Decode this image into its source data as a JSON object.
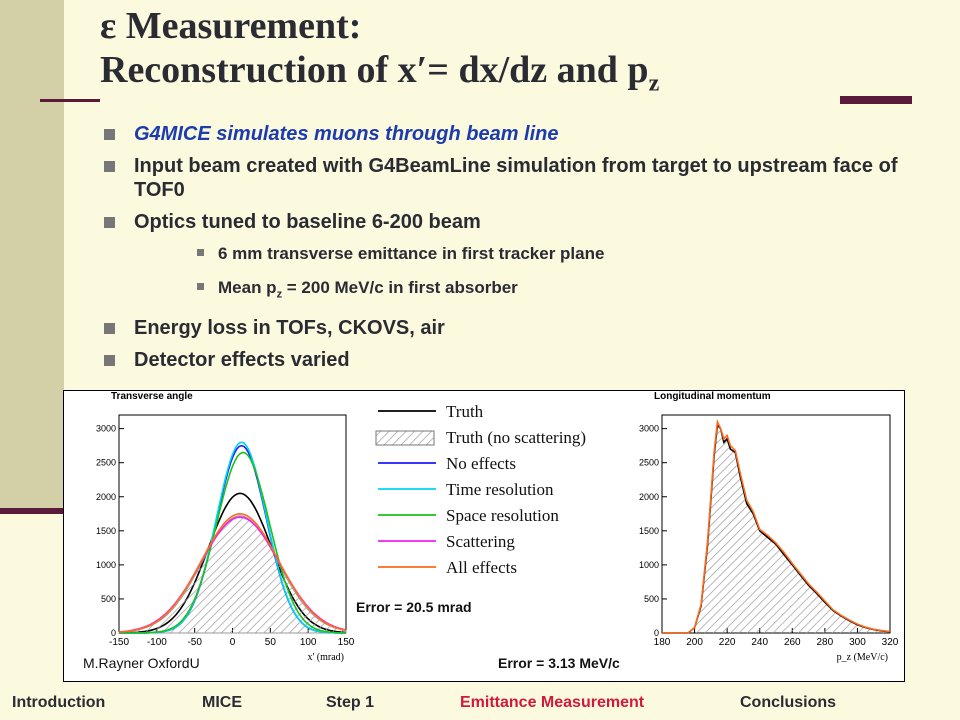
{
  "slide": {
    "title_line1": "ε Measurement:",
    "title_line2_pre": "Reconstruction of x′= dx/dz and p",
    "title_line2_sub": "z",
    "bullets": [
      "G4MICE simulates muons through beam line",
      "Input beam created with G4BeamLine simulation from target to upstream face of TOF0",
      "Optics tuned to baseline 6-200 beam"
    ],
    "sub_bullet1": "6 mm transverse emittance in first tracker plane",
    "sub_bullet2_pre": "Mean p",
    "sub_bullet2_sub": "z",
    "sub_bullet2_post": " = 200 MeV/c in first absorber",
    "bullet4": "Energy loss in TOFs, CKOVS, air",
    "bullet5": "Detector effects varied"
  },
  "figure": {
    "credit": "M.Rayner OxfordU",
    "error_left": "Error = 20.5 mrad",
    "error_right": "Error = 3.13 MeV/c",
    "legend": [
      {
        "label": "Truth",
        "color": "#000000"
      },
      {
        "label": "Truth (no scattering)",
        "color": "#999999"
      },
      {
        "label": "No effects",
        "color": "#1a1aff"
      },
      {
        "label": "Time resolution",
        "color": "#00d6f0"
      },
      {
        "label": "Space resolution",
        "color": "#1ec01e"
      },
      {
        "label": "Scattering",
        "color": "#f020f0"
      },
      {
        "label": "All effects",
        "color": "#ff6a1a"
      }
    ]
  },
  "chart_data": [
    {
      "type": "line",
      "title": "Transverse angle",
      "xlabel": "x' (mrad)",
      "ylabel": "",
      "xlim": [
        -150,
        150
      ],
      "ylim": [
        0,
        3200
      ],
      "x_ticks": [
        -150,
        -100,
        -50,
        0,
        50,
        100,
        150
      ],
      "y_ticks": [
        0,
        500,
        1000,
        1500,
        2000,
        2500,
        3000
      ],
      "series": [
        {
          "name": "Truth",
          "color": "#000000",
          "peak_x": 10,
          "peak_y": 2050,
          "sigma": 42
        },
        {
          "name": "Truth (no scattering)",
          "color": "#999999",
          "peak_x": 10,
          "peak_y": 1720,
          "sigma": 50
        },
        {
          "name": "No effects",
          "color": "#1a1aff",
          "peak_x": 12,
          "peak_y": 2750,
          "sigma": 33
        },
        {
          "name": "Time resolution",
          "color": "#00d6f0",
          "peak_x": 12,
          "peak_y": 2800,
          "sigma": 33
        },
        {
          "name": "Space resolution",
          "color": "#1ec01e",
          "peak_x": 14,
          "peak_y": 2650,
          "sigma": 35
        },
        {
          "name": "Scattering",
          "color": "#f020f0",
          "peak_x": 10,
          "peak_y": 1700,
          "sigma": 52
        },
        {
          "name": "All effects",
          "color": "#ff6a1a",
          "peak_x": 10,
          "peak_y": 1750,
          "sigma": 51
        }
      ]
    },
    {
      "type": "line",
      "title": "Longitudinal momentum",
      "xlabel": "p_z (MeV/c)",
      "ylabel": "",
      "xlim": [
        180,
        320
      ],
      "ylim": [
        0,
        3200
      ],
      "x_ticks": [
        180,
        200,
        220,
        240,
        260,
        280,
        300,
        320
      ],
      "y_ticks": [
        0,
        500,
        1000,
        1500,
        2000,
        2500,
        3000
      ],
      "series": [
        {
          "name": "Truth",
          "color": "#000000",
          "x": [
            180,
            196,
            200,
            204,
            208,
            212,
            214,
            216,
            218,
            220,
            222,
            225,
            228,
            232,
            236,
            240,
            245,
            250,
            255,
            260,
            265,
            270,
            275,
            280,
            285,
            290,
            295,
            300,
            305,
            310,
            315,
            320
          ],
          "y": [
            0,
            0,
            80,
            400,
            1300,
            2600,
            3050,
            3000,
            2800,
            2850,
            2700,
            2650,
            2300,
            1900,
            1750,
            1500,
            1400,
            1300,
            1150,
            1000,
            850,
            700,
            580,
            450,
            330,
            250,
            180,
            120,
            80,
            50,
            30,
            20
          ]
        },
        {
          "name": "All effects",
          "color": "#ff6a1a",
          "x": [
            180,
            196,
            200,
            204,
            208,
            212,
            214,
            216,
            218,
            220,
            222,
            225,
            228,
            232,
            236,
            240,
            245,
            250,
            255,
            260,
            265,
            270,
            275,
            280,
            285,
            290,
            295,
            300,
            305,
            310,
            315,
            320
          ],
          "y": [
            0,
            0,
            80,
            420,
            1350,
            2650,
            3100,
            3000,
            2850,
            2900,
            2750,
            2680,
            2350,
            1950,
            1780,
            1520,
            1430,
            1320,
            1180,
            1020,
            870,
            720,
            600,
            470,
            340,
            260,
            190,
            130,
            85,
            55,
            35,
            20
          ]
        }
      ]
    }
  ],
  "footer": {
    "items": [
      "Introduction",
      "MICE",
      "Step 1",
      "Emittance Measurement",
      "Conclusions"
    ],
    "active_index": 3,
    "active_color": "#d2193c"
  }
}
